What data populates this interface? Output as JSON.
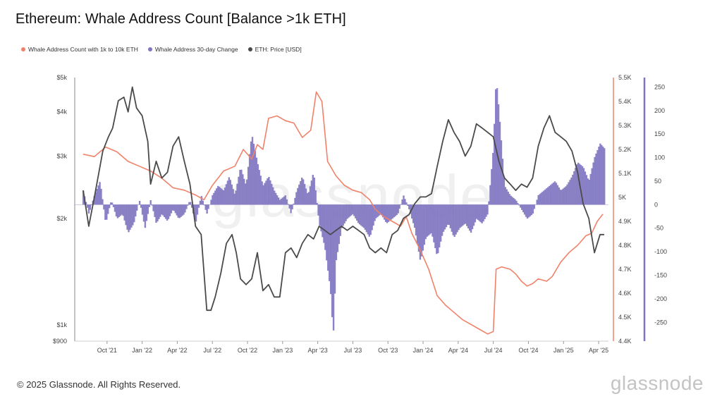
{
  "header": {
    "title": "Ethereum: Whale Address Count [Balance >1k ETH]"
  },
  "legend": {
    "items": [
      {
        "label": "Whale Address Count with 1k to 10k ETH",
        "color": "#f0826a"
      },
      {
        "label": "Whale Address 30-day Change",
        "color": "#7f76c1"
      },
      {
        "label": "ETH: Price [USD]",
        "color": "#4a4a4a"
      }
    ]
  },
  "footer": {
    "copyright": "© 2025 Glassnode. All Rights Reserved.",
    "brand": "glassnode",
    "watermark": "glassnode"
  },
  "chart_data": {
    "type": "line",
    "x_axis": {
      "ticks": [
        "Oct '21",
        "Jan '22",
        "Apr '22",
        "Jul '22",
        "Oct '22",
        "Jan '23",
        "Apr '23",
        "Jul '23",
        "Oct '23",
        "Jan '24",
        "Apr '24",
        "Jul '24",
        "Oct '24",
        "Jan '25",
        "Apr '25"
      ]
    },
    "y_left": {
      "label": "",
      "scale": "log",
      "range": [
        900,
        5000
      ],
      "ticks": [
        {
          "value": 1000,
          "label": "$1k"
        },
        {
          "value": 2000,
          "label": "$2k"
        },
        {
          "value": 3000,
          "label": "$3k"
        },
        {
          "value": 4000,
          "label": "$4k"
        },
        {
          "value": 5000,
          "label": "$5k"
        },
        {
          "value": 900,
          "label": "$900"
        }
      ]
    },
    "y_right_count": {
      "range": [
        4400,
        5500
      ],
      "ticks": [
        {
          "value": 4400,
          "label": "4.4K"
        },
        {
          "value": 4500,
          "label": "4.5K"
        },
        {
          "value": 4600,
          "label": "4.6K"
        },
        {
          "value": 4700,
          "label": "4.7K"
        },
        {
          "value": 4800,
          "label": "4.8K"
        },
        {
          "value": 4900,
          "label": "4.9K"
        },
        {
          "value": 5000,
          "label": "5K"
        },
        {
          "value": 5100,
          "label": "5.1K"
        },
        {
          "value": 5200,
          "label": "5.2K"
        },
        {
          "value": 5300,
          "label": "5.3K"
        },
        {
          "value": 5400,
          "label": "5.4K"
        },
        {
          "value": 5500,
          "label": "5.5K"
        }
      ]
    },
    "y_right_change": {
      "range": [
        -290,
        270
      ],
      "ticks": [
        {
          "value": 250,
          "label": "250"
        },
        {
          "value": 200,
          "label": "200"
        },
        {
          "value": 150,
          "label": "150"
        },
        {
          "value": 100,
          "label": "100"
        },
        {
          "value": 50,
          "label": "50"
        },
        {
          "value": 0,
          "label": "0"
        },
        {
          "value": -50,
          "label": "-50"
        },
        {
          "value": -100,
          "label": "-100"
        },
        {
          "value": -150,
          "label": "-150"
        },
        {
          "value": -200,
          "label": "-200"
        },
        {
          "value": -250,
          "label": "-250"
        }
      ]
    },
    "grid": false,
    "legend_position": "top-left",
    "series": [
      {
        "name": "ETH: Price [USD]",
        "color": "#4a4a4a",
        "points": [
          [
            2021.58,
            2400
          ],
          [
            2021.62,
            1900
          ],
          [
            2021.66,
            2300
          ],
          [
            2021.72,
            3100
          ],
          [
            2021.76,
            3400
          ],
          [
            2021.79,
            3600
          ],
          [
            2021.83,
            4300
          ],
          [
            2021.87,
            4400
          ],
          [
            2021.9,
            4000
          ],
          [
            2021.93,
            4700
          ],
          [
            2021.96,
            4100
          ],
          [
            2022.0,
            3900
          ],
          [
            2022.04,
            3300
          ],
          [
            2022.06,
            2500
          ],
          [
            2022.1,
            2900
          ],
          [
            2022.14,
            2600
          ],
          [
            2022.18,
            2700
          ],
          [
            2022.22,
            3200
          ],
          [
            2022.26,
            3400
          ],
          [
            2022.3,
            2900
          ],
          [
            2022.34,
            2500
          ],
          [
            2022.38,
            1900
          ],
          [
            2022.42,
            1800
          ],
          [
            2022.46,
            1100
          ],
          [
            2022.49,
            1100
          ],
          [
            2022.52,
            1200
          ],
          [
            2022.56,
            1400
          ],
          [
            2022.6,
            1700
          ],
          [
            2022.64,
            1800
          ],
          [
            2022.67,
            1600
          ],
          [
            2022.7,
            1350
          ],
          [
            2022.74,
            1300
          ],
          [
            2022.78,
            1350
          ],
          [
            2022.82,
            1600
          ],
          [
            2022.86,
            1250
          ],
          [
            2022.9,
            1300
          ],
          [
            2022.94,
            1200
          ],
          [
            2022.98,
            1200
          ],
          [
            2023.02,
            1600
          ],
          [
            2023.06,
            1650
          ],
          [
            2023.1,
            1550
          ],
          [
            2023.14,
            1700
          ],
          [
            2023.18,
            1800
          ],
          [
            2023.22,
            1750
          ],
          [
            2023.26,
            1900
          ],
          [
            2023.3,
            1850
          ],
          [
            2023.34,
            1800
          ],
          [
            2023.38,
            1850
          ],
          [
            2023.42,
            1900
          ],
          [
            2023.46,
            1850
          ],
          [
            2023.5,
            1900
          ],
          [
            2023.54,
            1850
          ],
          [
            2023.58,
            1800
          ],
          [
            2023.62,
            1650
          ],
          [
            2023.66,
            1600
          ],
          [
            2023.7,
            1650
          ],
          [
            2023.74,
            1600
          ],
          [
            2023.78,
            1800
          ],
          [
            2023.82,
            1850
          ],
          [
            2023.86,
            2000
          ],
          [
            2023.9,
            2050
          ],
          [
            2023.94,
            2200
          ],
          [
            2023.98,
            2300
          ],
          [
            2024.02,
            2300
          ],
          [
            2024.06,
            2350
          ],
          [
            2024.1,
            2800
          ],
          [
            2024.14,
            3300
          ],
          [
            2024.18,
            3800
          ],
          [
            2024.22,
            3500
          ],
          [
            2024.26,
            3300
          ],
          [
            2024.3,
            3000
          ],
          [
            2024.34,
            3200
          ],
          [
            2024.38,
            3700
          ],
          [
            2024.42,
            3600
          ],
          [
            2024.46,
            3500
          ],
          [
            2024.5,
            3400
          ],
          [
            2024.54,
            2900
          ],
          [
            2024.58,
            2600
          ],
          [
            2024.62,
            2500
          ],
          [
            2024.66,
            2400
          ],
          [
            2024.7,
            2500
          ],
          [
            2024.74,
            2450
          ],
          [
            2024.78,
            2600
          ],
          [
            2024.82,
            3200
          ],
          [
            2024.86,
            3600
          ],
          [
            2024.9,
            3900
          ],
          [
            2024.94,
            3500
          ],
          [
            2024.98,
            3400
          ],
          [
            2025.02,
            3300
          ],
          [
            2025.06,
            3100
          ],
          [
            2025.1,
            2700
          ],
          [
            2025.14,
            2200
          ],
          [
            2025.18,
            2000
          ],
          [
            2025.22,
            1600
          ],
          [
            2025.26,
            1800
          ],
          [
            2025.29,
            1800
          ]
        ]
      },
      {
        "name": "Whale Address Count with 1k to 10k ETH",
        "color": "#f0826a",
        "points": [
          [
            2021.58,
            5180
          ],
          [
            2021.66,
            5170
          ],
          [
            2021.74,
            5210
          ],
          [
            2021.82,
            5190
          ],
          [
            2021.9,
            5150
          ],
          [
            2021.98,
            5130
          ],
          [
            2022.06,
            5110
          ],
          [
            2022.14,
            5080
          ],
          [
            2022.22,
            5040
          ],
          [
            2022.3,
            5030
          ],
          [
            2022.38,
            5010
          ],
          [
            2022.44,
            4990
          ],
          [
            2022.5,
            5050
          ],
          [
            2022.58,
            5110
          ],
          [
            2022.66,
            5130
          ],
          [
            2022.72,
            5200
          ],
          [
            2022.78,
            5160
          ],
          [
            2022.82,
            5220
          ],
          [
            2022.86,
            5200
          ],
          [
            2022.9,
            5330
          ],
          [
            2022.96,
            5340
          ],
          [
            2023.02,
            5320
          ],
          [
            2023.08,
            5310
          ],
          [
            2023.14,
            5250
          ],
          [
            2023.2,
            5280
          ],
          [
            2023.24,
            5440
          ],
          [
            2023.28,
            5400
          ],
          [
            2023.32,
            5150
          ],
          [
            2023.38,
            5090
          ],
          [
            2023.44,
            5050
          ],
          [
            2023.5,
            5030
          ],
          [
            2023.56,
            5020
          ],
          [
            2023.62,
            4990
          ],
          [
            2023.66,
            4950
          ],
          [
            2023.72,
            4920
          ],
          [
            2023.78,
            4900
          ],
          [
            2023.84,
            4880
          ],
          [
            2023.88,
            4920
          ],
          [
            2023.92,
            4850
          ],
          [
            2023.98,
            4780
          ],
          [
            2024.04,
            4700
          ],
          [
            2024.1,
            4590
          ],
          [
            2024.16,
            4550
          ],
          [
            2024.22,
            4520
          ],
          [
            2024.28,
            4490
          ],
          [
            2024.34,
            4470
          ],
          [
            2024.4,
            4450
          ],
          [
            2024.46,
            4430
          ],
          [
            2024.5,
            4440
          ],
          [
            2024.52,
            4700
          ],
          [
            2024.56,
            4710
          ],
          [
            2024.62,
            4700
          ],
          [
            2024.66,
            4680
          ],
          [
            2024.7,
            4650
          ],
          [
            2024.74,
            4630
          ],
          [
            2024.78,
            4640
          ],
          [
            2024.82,
            4660
          ],
          [
            2024.88,
            4650
          ],
          [
            2024.92,
            4670
          ],
          [
            2024.98,
            4730
          ],
          [
            2025.04,
            4770
          ],
          [
            2025.1,
            4800
          ],
          [
            2025.16,
            4840
          ],
          [
            2025.2,
            4850
          ],
          [
            2025.24,
            4900
          ],
          [
            2025.28,
            4930
          ]
        ]
      },
      {
        "name": "Whale Address 30-day Change",
        "color": "#7f76c1",
        "points": [
          [
            2021.58,
            30
          ],
          [
            2021.62,
            -20
          ],
          [
            2021.66,
            20
          ],
          [
            2021.7,
            50
          ],
          [
            2021.74,
            -40
          ],
          [
            2021.78,
            10
          ],
          [
            2021.82,
            -30
          ],
          [
            2021.86,
            -20
          ],
          [
            2021.9,
            -60
          ],
          [
            2021.94,
            -40
          ],
          [
            2021.98,
            10
          ],
          [
            2022.02,
            -50
          ],
          [
            2022.06,
            10
          ],
          [
            2022.1,
            -40
          ],
          [
            2022.14,
            -20
          ],
          [
            2022.18,
            -35
          ],
          [
            2022.22,
            -10
          ],
          [
            2022.26,
            -30
          ],
          [
            2022.3,
            -20
          ],
          [
            2022.34,
            10
          ],
          [
            2022.38,
            -40
          ],
          [
            2022.42,
            20
          ],
          [
            2022.46,
            -20
          ],
          [
            2022.5,
            20
          ],
          [
            2022.54,
            40
          ],
          [
            2022.58,
            30
          ],
          [
            2022.62,
            60
          ],
          [
            2022.66,
            20
          ],
          [
            2022.7,
            80
          ],
          [
            2022.74,
            40
          ],
          [
            2022.78,
            150
          ],
          [
            2022.82,
            90
          ],
          [
            2022.86,
            40
          ],
          [
            2022.9,
            60
          ],
          [
            2022.94,
            30
          ],
          [
            2022.98,
            10
          ],
          [
            2023.02,
            20
          ],
          [
            2023.06,
            -20
          ],
          [
            2023.1,
            30
          ],
          [
            2023.14,
            60
          ],
          [
            2023.18,
            20
          ],
          [
            2023.22,
            70
          ],
          [
            2023.26,
            -40
          ],
          [
            2023.3,
            -90
          ],
          [
            2023.34,
            -180
          ],
          [
            2023.36,
            -280
          ],
          [
            2023.38,
            -120
          ],
          [
            2023.42,
            -50
          ],
          [
            2023.46,
            -30
          ],
          [
            2023.5,
            -20
          ],
          [
            2023.54,
            -40
          ],
          [
            2023.58,
            -50
          ],
          [
            2023.62,
            -70
          ],
          [
            2023.66,
            -30
          ],
          [
            2023.7,
            -20
          ],
          [
            2023.74,
            -40
          ],
          [
            2023.78,
            -30
          ],
          [
            2023.82,
            -20
          ],
          [
            2023.86,
            20
          ],
          [
            2023.9,
            -10
          ],
          [
            2023.94,
            -50
          ],
          [
            2023.98,
            -120
          ],
          [
            2024.02,
            -70
          ],
          [
            2024.06,
            -60
          ],
          [
            2024.1,
            -110
          ],
          [
            2024.14,
            -60
          ],
          [
            2024.18,
            -40
          ],
          [
            2024.22,
            -70
          ],
          [
            2024.26,
            -50
          ],
          [
            2024.3,
            -40
          ],
          [
            2024.34,
            -60
          ],
          [
            2024.38,
            -30
          ],
          [
            2024.42,
            -40
          ],
          [
            2024.46,
            -20
          ],
          [
            2024.5,
            120
          ],
          [
            2024.52,
            270
          ],
          [
            2024.54,
            200
          ],
          [
            2024.58,
            40
          ],
          [
            2024.62,
            20
          ],
          [
            2024.66,
            10
          ],
          [
            2024.7,
            -10
          ],
          [
            2024.74,
            -30
          ],
          [
            2024.78,
            -20
          ],
          [
            2024.82,
            20
          ],
          [
            2024.86,
            30
          ],
          [
            2024.9,
            40
          ],
          [
            2024.94,
            50
          ],
          [
            2024.98,
            30
          ],
          [
            2025.02,
            40
          ],
          [
            2025.06,
            60
          ],
          [
            2025.1,
            90
          ],
          [
            2025.14,
            80
          ],
          [
            2025.18,
            50
          ],
          [
            2025.22,
            100
          ],
          [
            2025.26,
            130
          ],
          [
            2025.29,
            120
          ]
        ]
      }
    ]
  }
}
